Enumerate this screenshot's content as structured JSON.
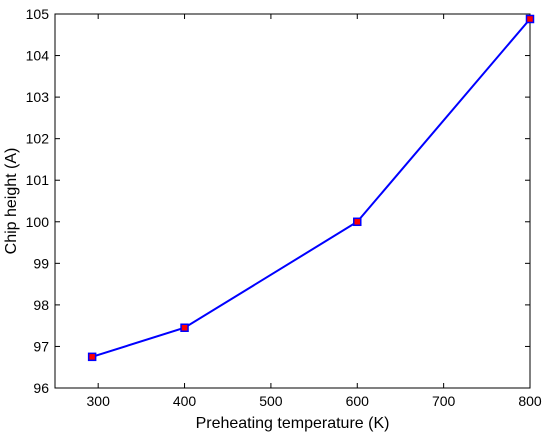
{
  "chart_data": {
    "type": "line",
    "title": "",
    "xlabel": "Preheating temperature (K)",
    "ylabel": "Chip height (A)",
    "xlim": [
      250,
      800
    ],
    "ylim": [
      96,
      105
    ],
    "xticks": [
      300,
      400,
      500,
      600,
      700,
      800
    ],
    "yticks": [
      96,
      97,
      98,
      99,
      100,
      101,
      102,
      103,
      104,
      105
    ],
    "grid": false,
    "series": [
      {
        "x": [
          293,
          400,
          600,
          800
        ],
        "y": [
          96.75,
          97.45,
          100.0,
          104.88
        ],
        "line_color": "#0000ff",
        "marker": "square",
        "marker_fill": "#ff0000",
        "marker_edge": "#0000ff"
      }
    ]
  }
}
